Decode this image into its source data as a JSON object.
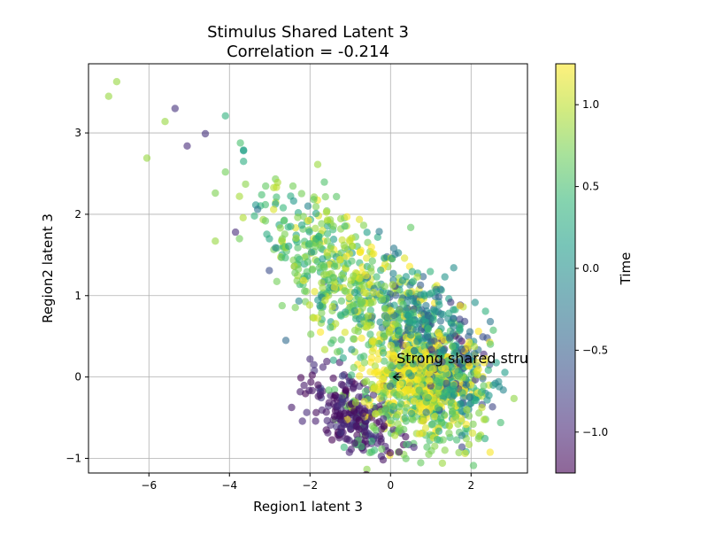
{
  "chart_data": {
    "type": "scatter",
    "title": "Stimulus Shared Latent 3",
    "subtitle": "Correlation = -0.214",
    "xlabel": "Region1 latent 3",
    "ylabel": "Region2 latent 3",
    "xlim": [
      -7.5,
      3.4
    ],
    "ylim": [
      -1.18,
      3.85
    ],
    "xticks": [
      -6,
      -4,
      -2,
      0,
      2
    ],
    "xtick_labels": [
      "−6",
      "−4",
      "−2",
      "0",
      "2"
    ],
    "yticks": [
      -1,
      0,
      1,
      2,
      3
    ],
    "ytick_labels": [
      "−1",
      "0",
      "1",
      "2",
      "3"
    ],
    "grid": true,
    "colormap": "viridis",
    "point_alpha": 0.6,
    "colorbar": {
      "label": "Time",
      "range": [
        -1.25,
        1.25
      ],
      "ticks": [
        -1.0,
        -0.5,
        0.0,
        0.5,
        1.0
      ],
      "tick_labels": [
        "−1.0",
        "−0.5",
        "0.0",
        "0.5",
        "1.0"
      ]
    },
    "annotation": {
      "text": "Strong shared structure",
      "point": [
        0.05,
        0.0
      ],
      "text_position": [
        0.15,
        0.17
      ]
    },
    "outlier_points": [
      {
        "x": -6.8,
        "y": 3.63,
        "t": 0.85
      },
      {
        "x": -7.0,
        "y": 3.45,
        "t": 0.85
      },
      {
        "x": -5.35,
        "y": 3.3,
        "t": -0.9
      },
      {
        "x": -4.6,
        "y": 2.99,
        "t": -0.9
      },
      {
        "x": -5.05,
        "y": 2.84,
        "t": -0.95
      },
      {
        "x": -5.6,
        "y": 3.14,
        "t": 0.85
      },
      {
        "x": -6.05,
        "y": 2.69,
        "t": 0.85
      },
      {
        "x": -4.1,
        "y": 3.21,
        "t": 0.35
      },
      {
        "x": -3.65,
        "y": 2.79,
        "t": 0.25
      },
      {
        "x": -3.65,
        "y": 2.65,
        "t": 0.3
      },
      {
        "x": -4.1,
        "y": 2.52,
        "t": 0.7
      },
      {
        "x": -4.35,
        "y": 2.26,
        "t": 0.75
      },
      {
        "x": -4.35,
        "y": 1.67,
        "t": 0.85
      },
      {
        "x": -3.85,
        "y": 1.78,
        "t": -0.95
      },
      {
        "x": -3.75,
        "y": 1.7,
        "t": 0.7
      },
      {
        "x": -3.6,
        "y": 2.37,
        "t": 0.8
      },
      {
        "x": -3.75,
        "y": 2.22,
        "t": 0.9
      },
      {
        "x": -3.2,
        "y": 2.24,
        "t": 0.5
      },
      {
        "x": -3.3,
        "y": 2.06,
        "t": -0.3
      },
      {
        "x": -2.05,
        "y": 2.1,
        "t": -0.1
      },
      {
        "x": -1.85,
        "y": 2.01,
        "t": 0.2
      },
      {
        "x": 2.55,
        "y": -0.1,
        "t": 0.1
      },
      {
        "x": 2.7,
        "y": -0.12,
        "t": 0.0
      },
      {
        "x": 2.8,
        "y": -0.16,
        "t": -0.1
      },
      {
        "x": 2.05,
        "y": -0.58,
        "t": 0.75
      },
      {
        "x": 2.2,
        "y": -0.73,
        "t": 0.75
      },
      {
        "x": 1.35,
        "y": -0.9,
        "t": 0.8
      },
      {
        "x": 1.7,
        "y": -0.93,
        "t": 0.8
      },
      {
        "x": 1.95,
        "y": -0.83,
        "t": 0.9
      },
      {
        "x": 1.1,
        "y": -0.85,
        "t": 0.8
      },
      {
        "x": 0.95,
        "y": -0.95,
        "t": 0.75
      },
      {
        "x": -0.4,
        "y": -0.9,
        "t": 0.45
      },
      {
        "x": -0.8,
        "y": -0.78,
        "t": 0.6
      },
      {
        "x": -1.9,
        "y": 0.15,
        "t": -0.9
      },
      {
        "x": -2.0,
        "y": 0.22,
        "t": -0.95
      },
      {
        "x": -2.6,
        "y": 0.45,
        "t": -0.4
      },
      {
        "x": 2.4,
        "y": 0.48,
        "t": -0.6
      }
    ],
    "clusters": [
      {
        "name": "",
        "center": [
          -1.8,
          1.4
        ],
        "spread": [
          0.75,
          0.45
        ],
        "tilt": -0.5,
        "count": 230,
        "t_mean": 0.6,
        "t_sd": 0.3
      },
      {
        "name": "",
        "center": [
          -0.6,
          1.05
        ],
        "spread": [
          0.8,
          0.4
        ],
        "tilt": -0.3,
        "count": 230,
        "t_mean": 0.9,
        "t_sd": 0.25
      },
      {
        "name": "",
        "center": [
          0.6,
          0.65
        ],
        "spread": [
          0.85,
          0.4
        ],
        "tilt": -0.2,
        "count": 260,
        "t_mean": 0.05,
        "t_sd": 0.35
      },
      {
        "name": "",
        "center": [
          1.3,
          0.3
        ],
        "spread": [
          0.6,
          0.4
        ],
        "tilt": -0.2,
        "count": 160,
        "t_mean": -0.4,
        "t_sd": 0.3
      },
      {
        "name": "",
        "center": [
          -1.0,
          -0.45
        ],
        "spread": [
          0.55,
          0.22
        ],
        "tilt": -0.25,
        "count": 220,
        "t_mean": -1.05,
        "t_sd": 0.15
      },
      {
        "name": "",
        "center": [
          0.6,
          -0.35
        ],
        "spread": [
          1.0,
          0.3
        ],
        "tilt": 0.0,
        "count": 220,
        "t_mean": 0.65,
        "t_sd": 0.2
      },
      {
        "name": "",
        "center": [
          0.8,
          0.0
        ],
        "spread": [
          0.7,
          0.3
        ],
        "tilt": 0.0,
        "count": 380,
        "t_mean": 1.22,
        "t_sd": 0.05
      },
      {
        "name": "",
        "center": [
          1.4,
          -0.1
        ],
        "spread": [
          0.6,
          0.3
        ],
        "tilt": 0.0,
        "count": 170,
        "t_mean": 0.3,
        "t_sd": 0.3
      }
    ]
  }
}
